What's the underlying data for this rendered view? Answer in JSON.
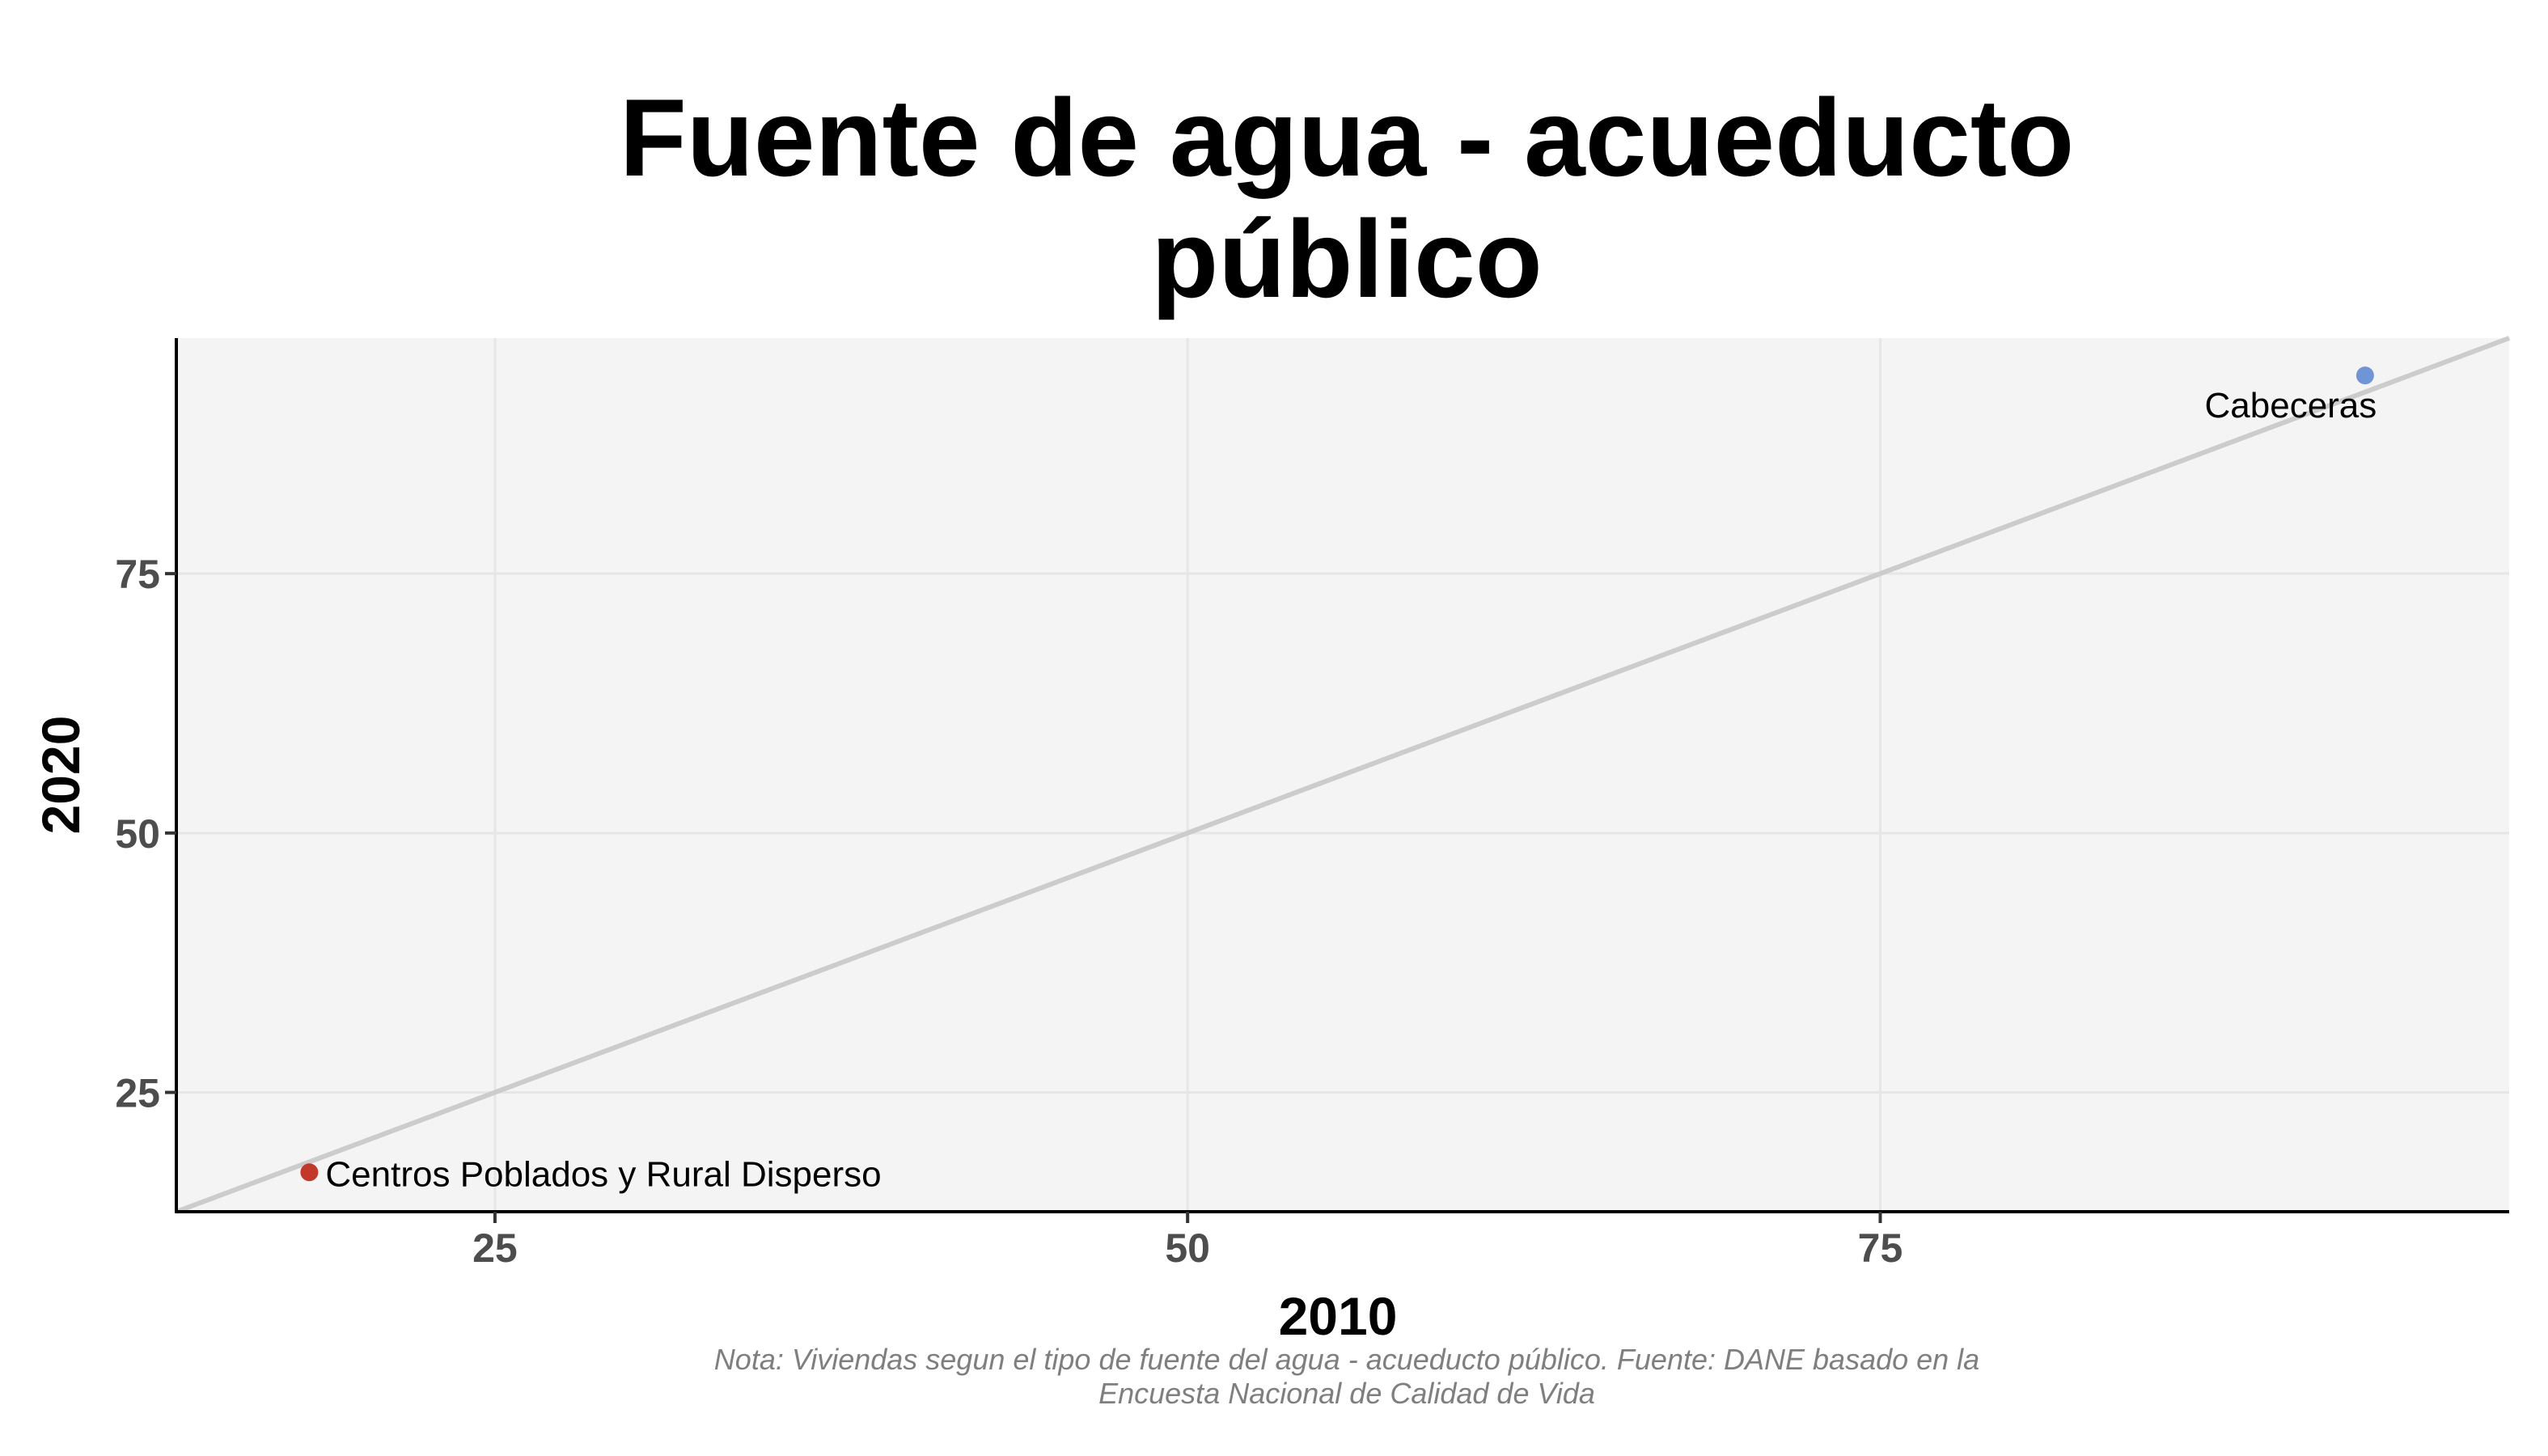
{
  "chart_data": {
    "type": "scatter",
    "title": "Fuente de agua - acueducto\npúblico",
    "xlabel": "2010",
    "ylabel": "2020",
    "caption": "Nota: Viviendas segun el tipo de fuente del agua - acueducto público. Fuente: DANE basado en la\nEncuesta Nacional de Calidad de Vida",
    "xlim": [
      13.5,
      97.7
    ],
    "ylim": [
      13.5,
      97.7
    ],
    "x_ticks": [
      25,
      50,
      75
    ],
    "y_ticks": [
      25,
      50,
      75
    ],
    "reference_line": "y = x",
    "grid": true,
    "legend": "none",
    "points": [
      {
        "label": "Centros Poblados y Rural Disperso",
        "x": 18.3,
        "y": 17.3,
        "color": "#c0392b"
      },
      {
        "label": "Cabeceras",
        "x": 92.5,
        "y": 94.1,
        "color": "#6f95d6"
      }
    ],
    "colors": {
      "panel_background": "#f4f4f4",
      "grid": "#e6e6e6",
      "reference_line": "#cccccc",
      "axis": "#000000",
      "tick_text": "#4d4d4d"
    }
  }
}
